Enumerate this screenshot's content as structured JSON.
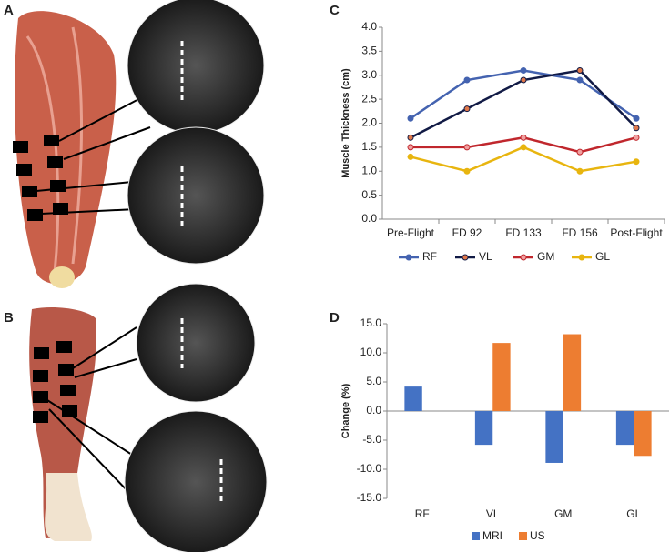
{
  "panel_labels": [
    "A",
    "B",
    "C",
    "D"
  ],
  "chart_data": [
    {
      "type": "line",
      "y_label": "Muscle Thickness (cm)",
      "categories": [
        "Pre-Flight",
        "FD 92",
        "FD 133",
        "FD 156",
        "Post-Flight"
      ],
      "series": [
        {
          "name": "RF",
          "color": "#4463b0",
          "marker_color": "#4463b0",
          "values": [
            2.1,
            2.9,
            3.1,
            2.9,
            2.1
          ]
        },
        {
          "name": "VL",
          "color": "#111a45",
          "marker_color": "#e0784a",
          "values": [
            1.7,
            2.3,
            2.9,
            3.1,
            1.9
          ]
        },
        {
          "name": "GM",
          "color": "#c0272d",
          "marker_color": "#f0a0a0",
          "values": [
            1.5,
            1.5,
            1.7,
            1.4,
            1.7
          ]
        },
        {
          "name": "GL",
          "color": "#e8b50f",
          "marker_color": "#e8b50f",
          "values": [
            1.3,
            1.0,
            1.5,
            1.0,
            1.2
          ]
        }
      ],
      "ylim": [
        0,
        4
      ],
      "yticks": [
        {
          "value": 0,
          "label": "0.0"
        },
        0.5,
        {
          "value": 1,
          "label": "1.0"
        },
        1.5,
        {
          "value": 2,
          "label": "2.0"
        },
        2.5,
        {
          "value": 3,
          "label": "3.0"
        },
        3.5,
        {
          "value": 4,
          "label": "4.0"
        }
      ],
      "grid": false
    },
    {
      "type": "bar",
      "y_label": "Change (%)",
      "categories": [
        "RF",
        "VL",
        "GM",
        "GL"
      ],
      "series": [
        {
          "name": "MRI",
          "color": "#4472c4",
          "values": [
            4.2,
            -5.8,
            -8.9,
            -5.8
          ]
        },
        {
          "name": "US",
          "color": "#ed7d31",
          "values": [
            null,
            11.7,
            13.2,
            -7.7
          ]
        }
      ],
      "ylim": [
        -15,
        15
      ],
      "yticks": [
        {
          "value": -15,
          "label": "-15.0"
        },
        {
          "value": -10,
          "label": "-10.0"
        },
        {
          "value": -5,
          "label": "-5.0"
        },
        {
          "value": 0,
          "label": "0.0"
        },
        {
          "value": 5,
          "label": "5.0"
        },
        {
          "value": 10,
          "label": "10.0"
        },
        {
          "value": 15,
          "label": "15.0"
        }
      ],
      "grid": false
    }
  ]
}
